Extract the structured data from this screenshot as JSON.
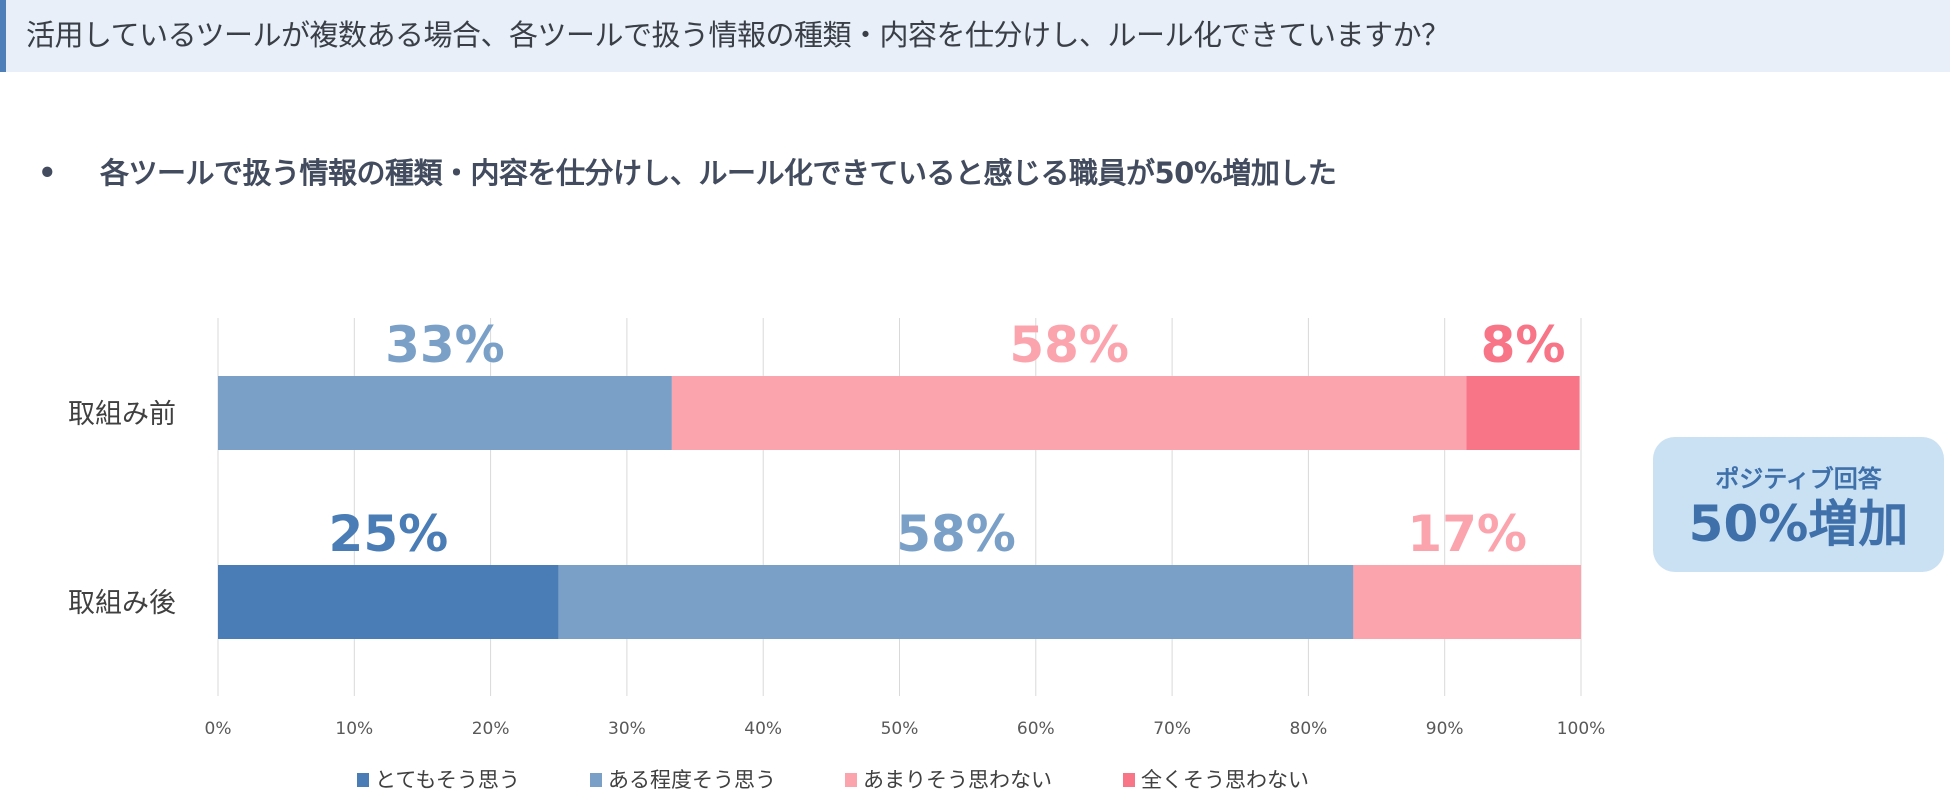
{
  "header": {
    "title": "活用しているツールが複数ある場合、各ツールで扱う情報の種類・内容を仕分けし、ルール化できていますか？"
  },
  "summary": {
    "bullet": "•",
    "text": "各ツールで扱う情報の種類・内容を仕分けし、ルール化できていると感じる職員が50%増加した"
  },
  "callout": {
    "line1": "ポジティブ回答",
    "line2": "50%増加"
  },
  "colors": {
    "very_much": "#4a7db5",
    "somewhat": "#7aa0c8",
    "not_much": "#fca4ae",
    "not_at_all": "#f77587"
  },
  "chart_data": {
    "type": "bar",
    "orientation": "horizontal-stacked-100",
    "categories": [
      "取組み前",
      "取組み後"
    ],
    "series": [
      {
        "name": "とてもそう思う",
        "values": [
          0,
          25
        ],
        "labels": [
          "",
          "25%"
        ],
        "color": "#4a7db5"
      },
      {
        "name": "ある程度そう思う",
        "values": [
          33.3,
          58.3
        ],
        "labels": [
          "33%",
          "58%"
        ],
        "color": "#7aa0c8"
      },
      {
        "name": "あまりそう思わない",
        "values": [
          58.3,
          16.7
        ],
        "labels": [
          "58%",
          "17%"
        ],
        "color": "#fca4ae"
      },
      {
        "name": "全くそう思わない",
        "values": [
          8.3,
          0
        ],
        "labels": [
          "8%",
          ""
        ],
        "color": "#f77587"
      }
    ],
    "xticks": [
      "0%",
      "10%",
      "20%",
      "30%",
      "40%",
      "50%",
      "60%",
      "70%",
      "80%",
      "90%",
      "100%"
    ],
    "xlim": [
      0,
      100
    ],
    "grid": true,
    "legend": "bottom"
  }
}
